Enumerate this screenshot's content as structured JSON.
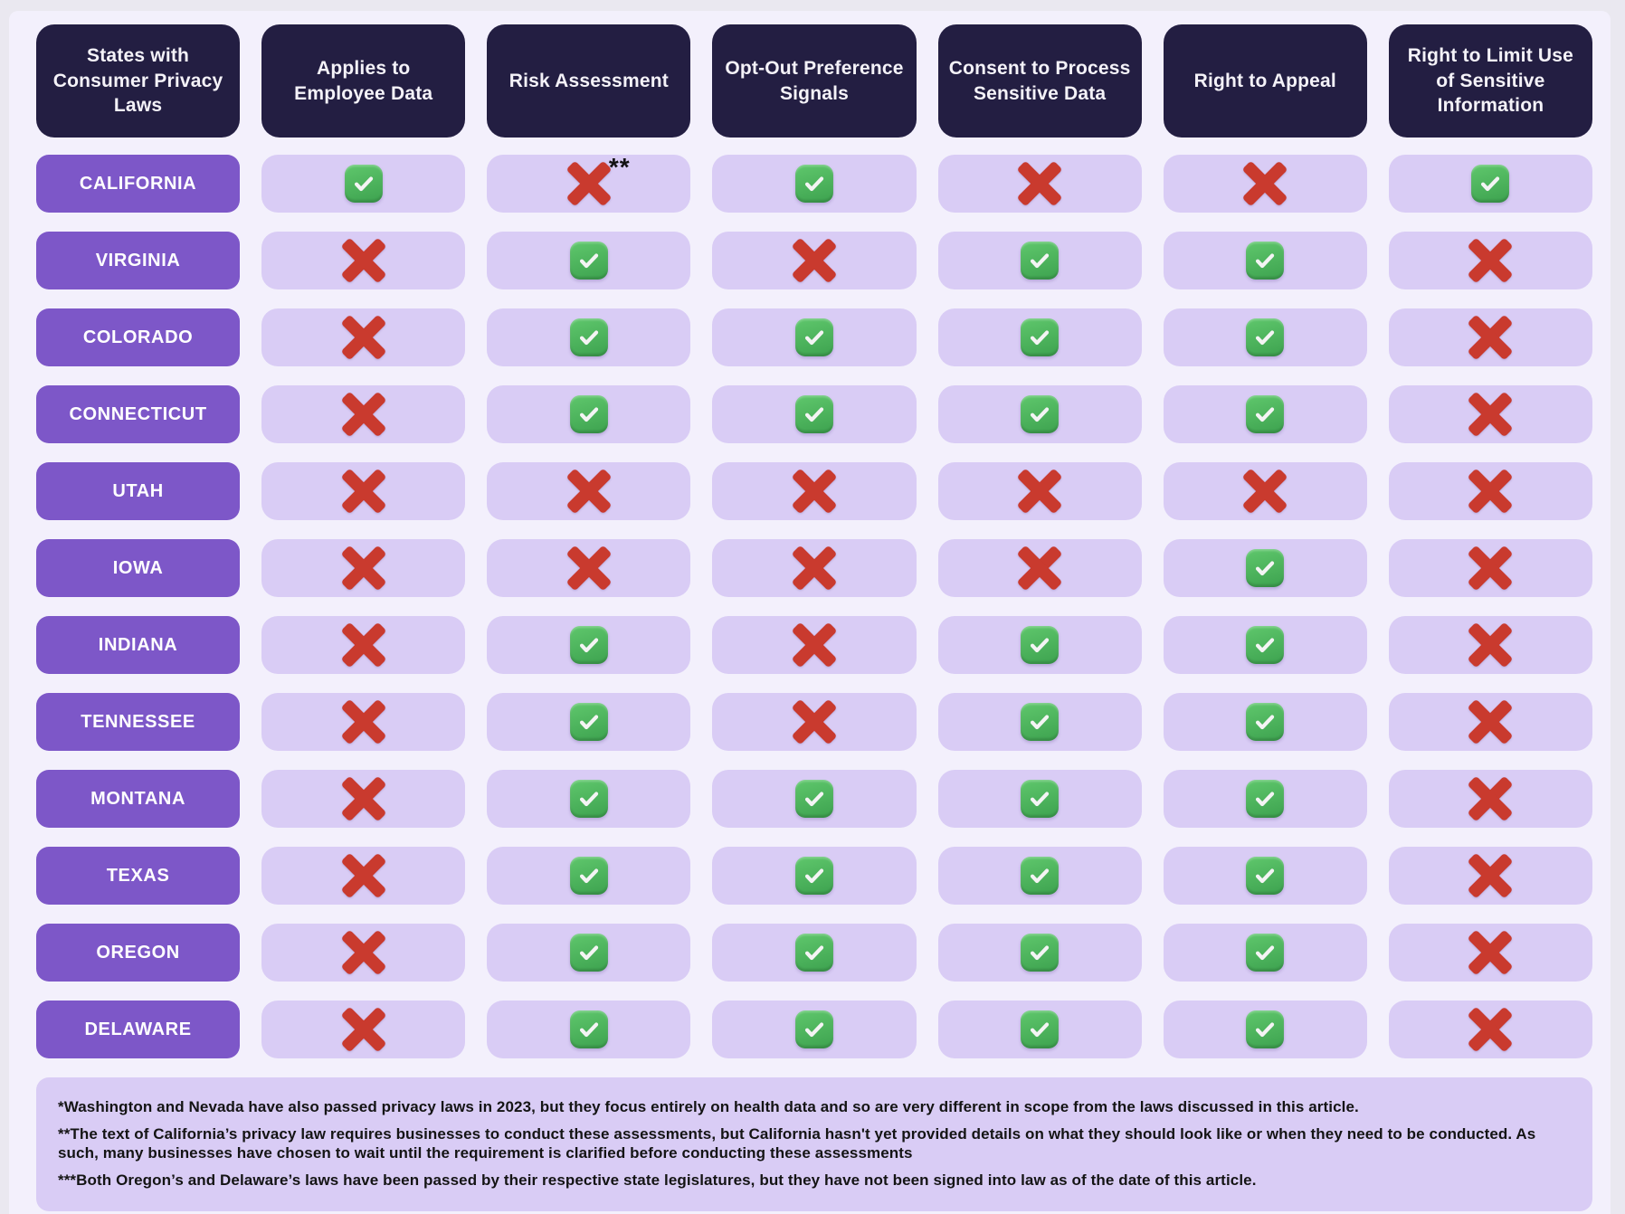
{
  "chart_data": {
    "type": "table",
    "title": "States with Consumer Privacy Laws",
    "columns": [
      "States with Consumer Privacy Laws",
      "Applies to Employee Data",
      "Risk Assessment",
      "Opt-Out Preference Signals",
      "Consent to Process Sensitive Data",
      "Right to Appeal",
      "Right to Limit Use of Sensitive Information"
    ],
    "legend": {
      "check": "has provision (green check icon)",
      "cross": "no provision (red cross icon)"
    },
    "rows": [
      {
        "state": "CALIFORNIA",
        "cells": [
          "check",
          "cross",
          "check",
          "cross",
          "cross",
          "check"
        ],
        "note": {
          "col": 1,
          "text": "**"
        }
      },
      {
        "state": "VIRGINIA",
        "cells": [
          "cross",
          "check",
          "cross",
          "check",
          "check",
          "cross"
        ]
      },
      {
        "state": "COLORADO",
        "cells": [
          "cross",
          "check",
          "check",
          "check",
          "check",
          "cross"
        ]
      },
      {
        "state": "CONNECTICUT",
        "cells": [
          "cross",
          "check",
          "check",
          "check",
          "check",
          "cross"
        ]
      },
      {
        "state": "UTAH",
        "cells": [
          "cross",
          "cross",
          "cross",
          "cross",
          "cross",
          "cross"
        ]
      },
      {
        "state": "IOWA",
        "cells": [
          "cross",
          "cross",
          "cross",
          "cross",
          "check",
          "cross"
        ]
      },
      {
        "state": "INDIANA",
        "cells": [
          "cross",
          "check",
          "cross",
          "check",
          "check",
          "cross"
        ]
      },
      {
        "state": "TENNESSEE",
        "cells": [
          "cross",
          "check",
          "cross",
          "check",
          "check",
          "cross"
        ]
      },
      {
        "state": "MONTANA",
        "cells": [
          "cross",
          "check",
          "check",
          "check",
          "check",
          "cross"
        ]
      },
      {
        "state": "TEXAS",
        "cells": [
          "cross",
          "check",
          "check",
          "check",
          "check",
          "cross"
        ]
      },
      {
        "state": "OREGON",
        "cells": [
          "cross",
          "check",
          "check",
          "check",
          "check",
          "cross"
        ]
      },
      {
        "state": "DELAWARE",
        "cells": [
          "cross",
          "check",
          "check",
          "check",
          "check",
          "cross"
        ]
      }
    ]
  },
  "footnotes": [
    "*Washington and Nevada have also passed privacy laws in 2023, but they focus entirely on health data and so are very different in scope from the laws discussed in this article.",
    "**The text of California’s privacy law requires businesses to conduct these assessments, but California hasn't yet provided details on what they should look like or when they need to be conducted. As such, many businesses have chosen to wait until the requirement is clarified before conducting these assessments",
    "***Both Oregon’s and Delaware’s laws have been passed by their respective state legislatures, but they have not been signed into law as of the date of this article."
  ],
  "colors": {
    "outer_bg": "#eae8f0",
    "panel_bg": "#f3f0fc",
    "header_bg": "#231e42",
    "state_pill_bg": "#7d57c8",
    "cell_bg": "#d9ccf5",
    "cross_red": "#c93a2e",
    "check_green": "#3da24f"
  }
}
